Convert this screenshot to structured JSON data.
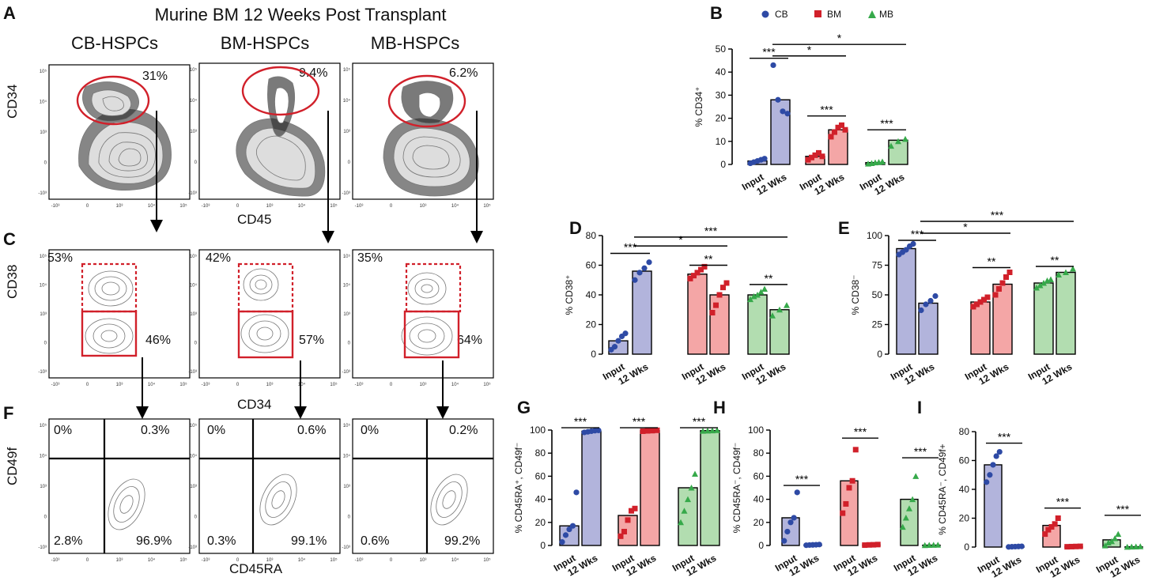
{
  "title": "Murine BM 12 Weeks Post Transplant",
  "column_titles": [
    "CB-HSPCs",
    "BM-HSPCs",
    "MB-HSPCs"
  ],
  "panel_letters": {
    "A": "A",
    "B": "B",
    "C": "C",
    "D": "D",
    "E": "E",
    "F": "F",
    "G": "G",
    "H": "H",
    "I": "I"
  },
  "axis_labels": {
    "row1_y": "CD34",
    "row1_x": "CD45",
    "row2_y": "CD38",
    "row2_x": "CD34",
    "row3_y": "CD49f",
    "row3_x": "CD45RA"
  },
  "flow_tick_labels": {
    "x": [
      "-10³",
      "0",
      "10³",
      "10⁴",
      "10⁵"
    ],
    "y": [
      "10⁵",
      "10⁴",
      "10³",
      "0",
      "-10³"
    ]
  },
  "row1_pcts": [
    "31%",
    "9.4%",
    "6.2%"
  ],
  "row2_top_pcts": [
    "53%",
    "42%",
    "35%"
  ],
  "row2_bottom_pcts": [
    "46%",
    "57%",
    "64%"
  ],
  "row3_pcts": {
    "tl": [
      "0%",
      "0%",
      "0%"
    ],
    "tr": [
      "0.3%",
      "0.6%",
      "0.2%"
    ],
    "bl": [
      "2.8%",
      "0.3%",
      "0.6%"
    ],
    "br": [
      "96.9%",
      "99.1%",
      "99.2%"
    ]
  },
  "legend": [
    {
      "name": "CB",
      "marker": "circle",
      "color": "#2e4aa5"
    },
    {
      "name": "BM",
      "marker": "square",
      "color": "#d1202a"
    },
    {
      "name": "MB",
      "marker": "triangle",
      "color": "#36a94a"
    }
  ],
  "group_colors": {
    "CB": {
      "fill": "#b2b4dc",
      "point": "#2e4aa5"
    },
    "BM": {
      "fill": "#f4a6a6",
      "point": "#d1202a"
    },
    "MB": {
      "fill": "#b2ddb0",
      "point": "#36a94a"
    }
  },
  "x_categories": [
    "Input",
    "12 Wks"
  ],
  "chart_data": [
    {
      "id": "B",
      "type": "bar",
      "ylabel": "% CD34⁺",
      "ylim": [
        0,
        50
      ],
      "yticks": [
        "0",
        "10",
        "20",
        "30",
        "40",
        "50"
      ],
      "ytick_values": [
        0,
        10,
        20,
        30,
        40,
        50
      ],
      "groups": [
        "CB",
        "BM",
        "MB"
      ],
      "categories": [
        "Input",
        "12 Wks"
      ],
      "bars": [
        1.5,
        28,
        3.5,
        15,
        0.8,
        10.5
      ],
      "points": [
        [
          0.5,
          1,
          1.5,
          2,
          2.5
        ],
        [
          43,
          28,
          23,
          22
        ],
        [
          2,
          3,
          4,
          5,
          3.5
        ],
        [
          12,
          14,
          16,
          17,
          15
        ],
        [
          0.3,
          0.5,
          0.8,
          1,
          1.2
        ],
        [
          8,
          10,
          11
        ]
      ],
      "sig": [
        {
          "from": 0,
          "to": 1,
          "label": "***",
          "value": 46
        },
        {
          "from": 1,
          "to": 3,
          "label": "*",
          "value": 47
        },
        {
          "from": 1,
          "to": 5,
          "label": "*",
          "value": 52
        },
        {
          "from": 2,
          "to": 3,
          "label": "***",
          "value": 21
        },
        {
          "from": 4,
          "to": 5,
          "label": "***",
          "value": 15
        }
      ]
    },
    {
      "id": "D",
      "type": "bar",
      "ylabel": "% CD38⁺",
      "ylim": [
        0,
        80
      ],
      "yticks": [
        "0",
        "20",
        "40",
        "60",
        "80"
      ],
      "ytick_values": [
        0,
        20,
        40,
        60,
        80
      ],
      "groups": [
        "CB",
        "BM",
        "MB"
      ],
      "categories": [
        "Input",
        "12 Wks"
      ],
      "bars": [
        9,
        56,
        54,
        40,
        40,
        30
      ],
      "points": [
        [
          3,
          5,
          9,
          12,
          14
        ],
        [
          50,
          55,
          58,
          62
        ],
        [
          51,
          53,
          55,
          57,
          59
        ],
        [
          28,
          33,
          40,
          45,
          48
        ],
        [
          37,
          39,
          40,
          42,
          44
        ],
        [
          26,
          30,
          33
        ]
      ],
      "sig": [
        {
          "from": 0,
          "to": 1,
          "label": "***",
          "value": 68
        },
        {
          "from": 1,
          "to": 3,
          "label": "*",
          "value": 73
        },
        {
          "from": 1,
          "to": 5,
          "label": "***",
          "value": 79
        },
        {
          "from": 2,
          "to": 3,
          "label": "**",
          "value": 60
        },
        {
          "from": 4,
          "to": 5,
          "label": "**",
          "value": 47
        }
      ]
    },
    {
      "id": "E",
      "type": "bar",
      "ylabel": "% CD38⁻",
      "ylim": [
        0,
        100
      ],
      "yticks": [
        "0",
        "25",
        "50",
        "75",
        "100"
      ],
      "ytick_values": [
        0,
        25,
        50,
        75,
        100
      ],
      "groups": [
        "CB",
        "BM",
        "MB"
      ],
      "categories": [
        "Input",
        "12 Wks"
      ],
      "bars": [
        89,
        43,
        44,
        59,
        60,
        69
      ],
      "points": [
        [
          84,
          86,
          88,
          91,
          93
        ],
        [
          37,
          42,
          45,
          49
        ],
        [
          40,
          42,
          44,
          46,
          48
        ],
        [
          50,
          55,
          60,
          65,
          69
        ],
        [
          56,
          58,
          60,
          62,
          63
        ],
        [
          67,
          69,
          72
        ]
      ],
      "sig": [
        {
          "from": 0,
          "to": 1,
          "label": "***",
          "value": 96
        },
        {
          "from": 1,
          "to": 3,
          "label": "*",
          "value": 102
        },
        {
          "from": 1,
          "to": 5,
          "label": "***",
          "value": 112
        },
        {
          "from": 2,
          "to": 3,
          "label": "**",
          "value": 73
        },
        {
          "from": 4,
          "to": 5,
          "label": "**",
          "value": 74
        }
      ]
    },
    {
      "id": "G",
      "type": "bar",
      "ylabel": "% CD45RA⁺, CD49f⁻",
      "ylim": [
        0,
        100
      ],
      "yticks": [
        "0",
        "20",
        "40",
        "60",
        "80",
        "100"
      ],
      "ytick_values": [
        0,
        20,
        40,
        60,
        80,
        100
      ],
      "groups": [
        "CB",
        "BM",
        "MB"
      ],
      "categories": [
        "Input",
        "12 Wks"
      ],
      "bars": [
        17,
        99,
        26,
        99.5,
        50,
        99.5
      ],
      "points": [
        [
          3,
          9,
          14,
          17,
          46
        ],
        [
          98,
          98.5,
          99,
          99.5,
          99.7
        ],
        [
          8,
          12,
          22,
          30,
          32
        ],
        [
          99,
          99.3,
          99.5,
          99.8
        ],
        [
          20,
          30,
          40,
          50,
          62
        ],
        [
          99.2,
          99.4,
          99.6,
          99.8
        ]
      ],
      "sig": [
        {
          "from": 0,
          "to": 1,
          "label": "***",
          "value": 102
        },
        {
          "from": 2,
          "to": 3,
          "label": "***",
          "value": 102
        },
        {
          "from": 4,
          "to": 5,
          "label": "***",
          "value": 102
        }
      ]
    },
    {
      "id": "H",
      "type": "bar",
      "ylabel": "% CD45RA⁻, CD49f⁻",
      "ylim": [
        0,
        100
      ],
      "yticks": [
        "0",
        "20",
        "40",
        "60",
        "80",
        "100"
      ],
      "ytick_values": [
        0,
        20,
        40,
        60,
        80,
        100
      ],
      "groups": [
        "CB",
        "BM",
        "MB"
      ],
      "categories": [
        "Input",
        "12 Wks"
      ],
      "bars": [
        24,
        0.5,
        56,
        0.5,
        40,
        0.3
      ],
      "points": [
        [
          4,
          12,
          20,
          24,
          46
        ],
        [
          0.2,
          0.4,
          0.5,
          0.6,
          0.8
        ],
        [
          28,
          36,
          50,
          56,
          83
        ],
        [
          0.3,
          0.5,
          0.6,
          0.8
        ],
        [
          16,
          24,
          32,
          40,
          60
        ],
        [
          0.2,
          0.3,
          0.4,
          0.5
        ]
      ],
      "sig": [
        {
          "from": 0,
          "to": 1,
          "label": "***",
          "value": 52
        },
        {
          "from": 2,
          "to": 3,
          "label": "***",
          "value": 93
        },
        {
          "from": 4,
          "to": 5,
          "label": "***",
          "value": 76
        }
      ]
    },
    {
      "id": "I",
      "type": "bar",
      "ylabel": "% CD45RA⁻, CD49f+",
      "ylim": [
        0,
        80
      ],
      "yticks": [
        "0",
        "20",
        "40",
        "60",
        "80"
      ],
      "ytick_values": [
        0,
        20,
        40,
        60,
        80
      ],
      "groups": [
        "CB",
        "BM",
        "MB"
      ],
      "categories": [
        "Input",
        "12 Wks"
      ],
      "bars": [
        57,
        0.3,
        15,
        0.3,
        5,
        0.2
      ],
      "points": [
        [
          45,
          50,
          57,
          63,
          66
        ],
        [
          0.1,
          0.2,
          0.3,
          0.4,
          0.5
        ],
        [
          9,
          12,
          14,
          16,
          20
        ],
        [
          0.2,
          0.3,
          0.4,
          0.5
        ],
        [
          1,
          3,
          4,
          6,
          9
        ],
        [
          0.1,
          0.2,
          0.3,
          0.4
        ]
      ],
      "sig": [
        {
          "from": 0,
          "to": 1,
          "label": "***",
          "value": 72
        },
        {
          "from": 2,
          "to": 3,
          "label": "***",
          "value": 27
        },
        {
          "from": 4,
          "to": 5,
          "label": "***",
          "value": 22
        }
      ]
    }
  ]
}
